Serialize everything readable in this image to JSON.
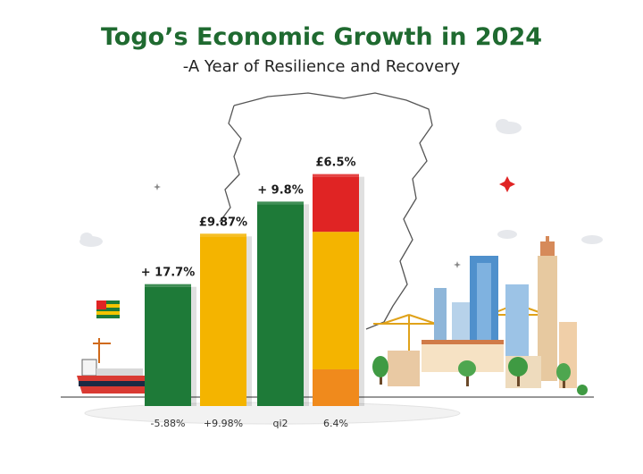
{
  "header": {
    "title": "Togo’s Economic Growth in 2024",
    "subtitle": "-A Year of Resilience and Recovery"
  },
  "colors": {
    "green": "#1e7a38",
    "green_dark": "#145a28",
    "yellow": "#f4b400",
    "yellow_dark": "#d89a00",
    "red": "#e02424",
    "orange": "#f08a1c",
    "title_green": "#1f6a30"
  },
  "chart_data": {
    "type": "bar",
    "categories": [
      "-5.88%",
      "+9.98%",
      "qi2",
      "6.4%"
    ],
    "top_labels": [
      "+ 17.7%",
      "£9.87%",
      "+ 9.8%",
      "£6.5%"
    ],
    "values": [
      26,
      37,
      44,
      50
    ],
    "segments": [
      [
        {
          "value": 26,
          "color": "green"
        }
      ],
      [
        {
          "value": 37,
          "color": "yellow"
        }
      ],
      [
        {
          "value": 44,
          "color": "green"
        }
      ],
      [
        {
          "value": 8,
          "color": "orange"
        },
        {
          "value": 30,
          "color": "yellow"
        },
        {
          "value": 12,
          "color": "red"
        }
      ]
    ],
    "ylim": [
      0,
      55
    ],
    "grid": false
  },
  "icons": [
    "togo-map-outline-icon",
    "cargo-ship-icon",
    "togo-flag-icon",
    "city-skyline-icon",
    "crane-icon",
    "cloud-icon",
    "sparkle-icon",
    "tree-icon"
  ]
}
